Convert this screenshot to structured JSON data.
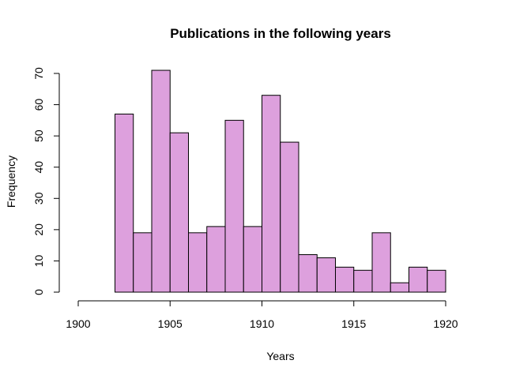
{
  "chart_data": {
    "type": "bar",
    "title": "Publications in the following years",
    "xlabel": "Years",
    "ylabel": "Frequency",
    "bar_color": "#dda0dd",
    "bin_width": 1,
    "bins": [
      {
        "x_start": 1902,
        "x_end": 1903,
        "value": 57
      },
      {
        "x_start": 1903,
        "x_end": 1904,
        "value": 19
      },
      {
        "x_start": 1904,
        "x_end": 1905,
        "value": 71
      },
      {
        "x_start": 1905,
        "x_end": 1906,
        "value": 51
      },
      {
        "x_start": 1906,
        "x_end": 1907,
        "value": 19
      },
      {
        "x_start": 1907,
        "x_end": 1908,
        "value": 21
      },
      {
        "x_start": 1908,
        "x_end": 1909,
        "value": 55
      },
      {
        "x_start": 1909,
        "x_end": 1910,
        "value": 21
      },
      {
        "x_start": 1910,
        "x_end": 1911,
        "value": 63
      },
      {
        "x_start": 1911,
        "x_end": 1912,
        "value": 48
      },
      {
        "x_start": 1912,
        "x_end": 1913,
        "value": 12
      },
      {
        "x_start": 1913,
        "x_end": 1914,
        "value": 11
      },
      {
        "x_start": 1914,
        "x_end": 1915,
        "value": 8
      },
      {
        "x_start": 1915,
        "x_end": 1916,
        "value": 7
      },
      {
        "x_start": 1916,
        "x_end": 1917,
        "value": 19
      },
      {
        "x_start": 1917,
        "x_end": 1918,
        "value": 3
      },
      {
        "x_start": 1918,
        "x_end": 1919,
        "value": 8
      },
      {
        "x_start": 1919,
        "x_end": 1920,
        "value": 7
      }
    ],
    "xlim": [
      1900,
      1920
    ],
    "ylim": [
      0,
      70
    ],
    "x_ticks": [
      1900,
      1905,
      1910,
      1915,
      1920
    ],
    "y_ticks": [
      0,
      10,
      20,
      30,
      40,
      50,
      60,
      70
    ],
    "grid": false
  }
}
